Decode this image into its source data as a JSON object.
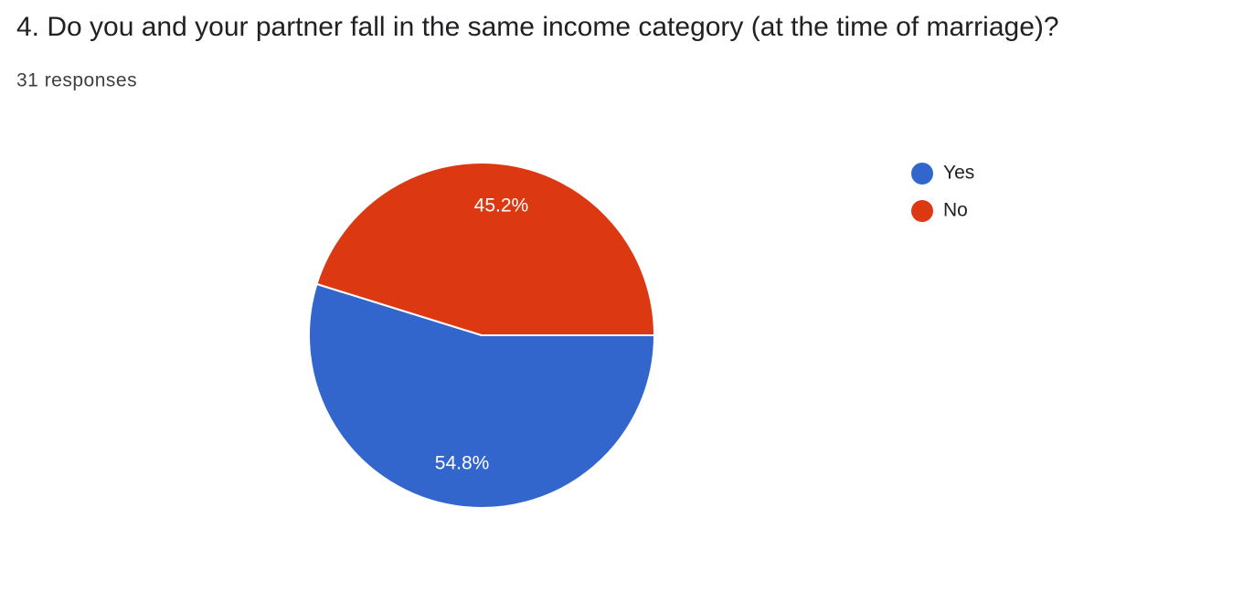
{
  "chart_data": {
    "type": "pie",
    "title": "4. Do you and your partner fall in the same income category (at the time of marriage)?",
    "subtitle": "31 responses",
    "categories": [
      "Yes",
      "No"
    ],
    "values": [
      54.8,
      45.2
    ],
    "value_labels": [
      "54.8%",
      "45.2%"
    ],
    "colors": [
      "#3366cc",
      "#dc3912"
    ],
    "legend": "right"
  }
}
